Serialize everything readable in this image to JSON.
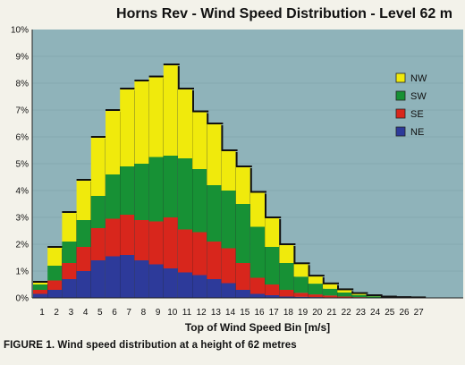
{
  "caption": "FIGURE 1. Wind speed distribution at a height of 62 metres",
  "chart_data": {
    "type": "bar",
    "stacked": true,
    "title": "Horns Rev - Wind Speed Distribution - Level 62 m",
    "xlabel": "Top of Wind Speed Bin [m/s]",
    "ylabel": "",
    "ylim": [
      0,
      10
    ],
    "yticks": [
      "0%",
      "1%",
      "2%",
      "3%",
      "4%",
      "5%",
      "6%",
      "7%",
      "8%",
      "9%",
      "10%"
    ],
    "categories": [
      "1",
      "2",
      "3",
      "4",
      "5",
      "6",
      "7",
      "8",
      "9",
      "10",
      "11",
      "12",
      "13",
      "14",
      "15",
      "16",
      "17",
      "18",
      "19",
      "20",
      "21",
      "22",
      "23",
      "24",
      "25",
      "26",
      "27"
    ],
    "legend_position": "right",
    "plot_background": "#8fb3ba",
    "series": [
      {
        "name": "NE",
        "color": "#2d3a9a",
        "values": [
          0.15,
          0.3,
          0.7,
          1.0,
          1.4,
          1.55,
          1.6,
          1.4,
          1.25,
          1.1,
          0.95,
          0.85,
          0.7,
          0.55,
          0.3,
          0.15,
          0.1,
          0.05,
          0.04,
          0.03,
          0.02,
          0.01,
          0.01,
          0.0,
          0.0,
          0.0,
          0.0
        ]
      },
      {
        "name": "SE",
        "color": "#d8261c",
        "values": [
          0.15,
          0.35,
          0.6,
          0.9,
          1.2,
          1.4,
          1.5,
          1.5,
          1.6,
          1.9,
          1.6,
          1.6,
          1.4,
          1.3,
          1.0,
          0.6,
          0.4,
          0.25,
          0.15,
          0.1,
          0.07,
          0.04,
          0.02,
          0.01,
          0.0,
          0.0,
          0.0
        ]
      },
      {
        "name": "SW",
        "color": "#179135",
        "values": [
          0.2,
          0.55,
          0.8,
          1.0,
          1.2,
          1.65,
          1.8,
          2.1,
          2.4,
          2.3,
          2.65,
          2.35,
          2.1,
          2.15,
          2.2,
          1.9,
          1.4,
          1.0,
          0.6,
          0.4,
          0.25,
          0.15,
          0.08,
          0.05,
          0.03,
          0.02,
          0.01
        ]
      },
      {
        "name": "NW",
        "color": "#f0ea0c",
        "values": [
          0.1,
          0.7,
          1.1,
          1.5,
          2.2,
          2.4,
          2.9,
          3.1,
          3.0,
          3.4,
          2.6,
          2.15,
          2.3,
          1.5,
          1.4,
          1.3,
          1.1,
          0.7,
          0.5,
          0.3,
          0.2,
          0.12,
          0.07,
          0.04,
          0.02,
          0.01,
          0.01
        ]
      }
    ]
  }
}
